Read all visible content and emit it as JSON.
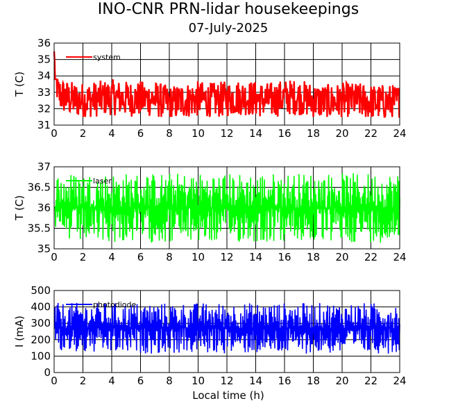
{
  "chart_data": {
    "title": "INO-CNR PRN-lidar housekeepings",
    "subtitle": "07-July-2025",
    "xlabel": "Local time (h)",
    "xlim": [
      0,
      24
    ],
    "xticks": [
      0,
      2,
      4,
      6,
      8,
      10,
      12,
      14,
      16,
      18,
      20,
      22,
      24
    ],
    "grid": true,
    "panels": [
      {
        "type": "line",
        "ylabel": "T (C)",
        "ylim": [
          31,
          36
        ],
        "yticks": [
          31,
          32,
          33,
          34,
          35,
          36
        ],
        "series": [
          {
            "name": "system",
            "color": "#ff0000",
            "x": [
              0,
              0.1,
              0.3,
              1,
              2,
              3,
              4,
              5,
              6,
              7,
              8,
              9,
              10,
              11,
              12,
              13,
              14,
              15,
              16,
              17,
              18,
              19,
              20,
              21,
              22,
              23,
              24
            ],
            "y": [
              35.5,
              34,
              32.9,
              32.6,
              32.5,
              32.6,
              32.7,
              32.6,
              32.6,
              32.6,
              32.3,
              32.5,
              32.6,
              32.5,
              32.6,
              32.7,
              32.6,
              32.5,
              32.7,
              32.7,
              32.5,
              32.4,
              32.5,
              32.5,
              32.4,
              32.4,
              32.4
            ],
            "range_low": 31.5,
            "range_high": 33.8
          }
        ]
      },
      {
        "type": "line",
        "ylabel": "T (C)",
        "ylim": [
          35,
          37
        ],
        "yticks": [
          35,
          35.5,
          36,
          36.5,
          37
        ],
        "series": [
          {
            "name": "laser",
            "color": "#00ff00",
            "x": [
              0,
              24
            ],
            "y": [
              36,
              36
            ],
            "range_low": 35.15,
            "range_high": 36.85
          }
        ]
      },
      {
        "type": "line",
        "ylabel": "I (mA)",
        "ylim": [
          0,
          500
        ],
        "yticks": [
          0,
          100,
          200,
          300,
          400,
          500
        ],
        "series": [
          {
            "name": "photodiode",
            "color": "#0000ff",
            "x": [
              0,
              24
            ],
            "y": [
              270,
              270
            ],
            "range_low": 115,
            "range_high": 425
          }
        ]
      }
    ]
  }
}
